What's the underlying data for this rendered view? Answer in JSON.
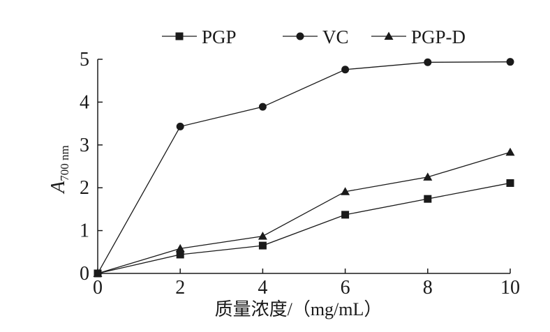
{
  "chart_data": {
    "type": "line",
    "title": "",
    "xlabel": "质量浓度/（mg/mL）",
    "ylabel": {
      "main": "A",
      "subscript": "700 nm"
    },
    "x": [
      0,
      2,
      4,
      6,
      8,
      10
    ],
    "xlim": [
      0,
      10
    ],
    "ylim": [
      0,
      5
    ],
    "xticks": [
      "0",
      "2",
      "4",
      "6",
      "8",
      "10"
    ],
    "yticks": [
      "0",
      "1",
      "2",
      "3",
      "4",
      "5"
    ],
    "grid": false,
    "legend_position": "top",
    "series": [
      {
        "name": "PGP",
        "marker": "square",
        "values": [
          0,
          0.44,
          0.65,
          1.37,
          1.74,
          2.11
        ]
      },
      {
        "name": "VC",
        "marker": "circle",
        "values": [
          0,
          3.43,
          3.89,
          4.76,
          4.93,
          4.94
        ]
      },
      {
        "name": "PGP-D",
        "marker": "triangle",
        "values": [
          0,
          0.58,
          0.87,
          1.91,
          2.25,
          2.83
        ]
      }
    ],
    "colors": {
      "line": "#1a1a1a",
      "marker": "#1a1a1a"
    }
  }
}
